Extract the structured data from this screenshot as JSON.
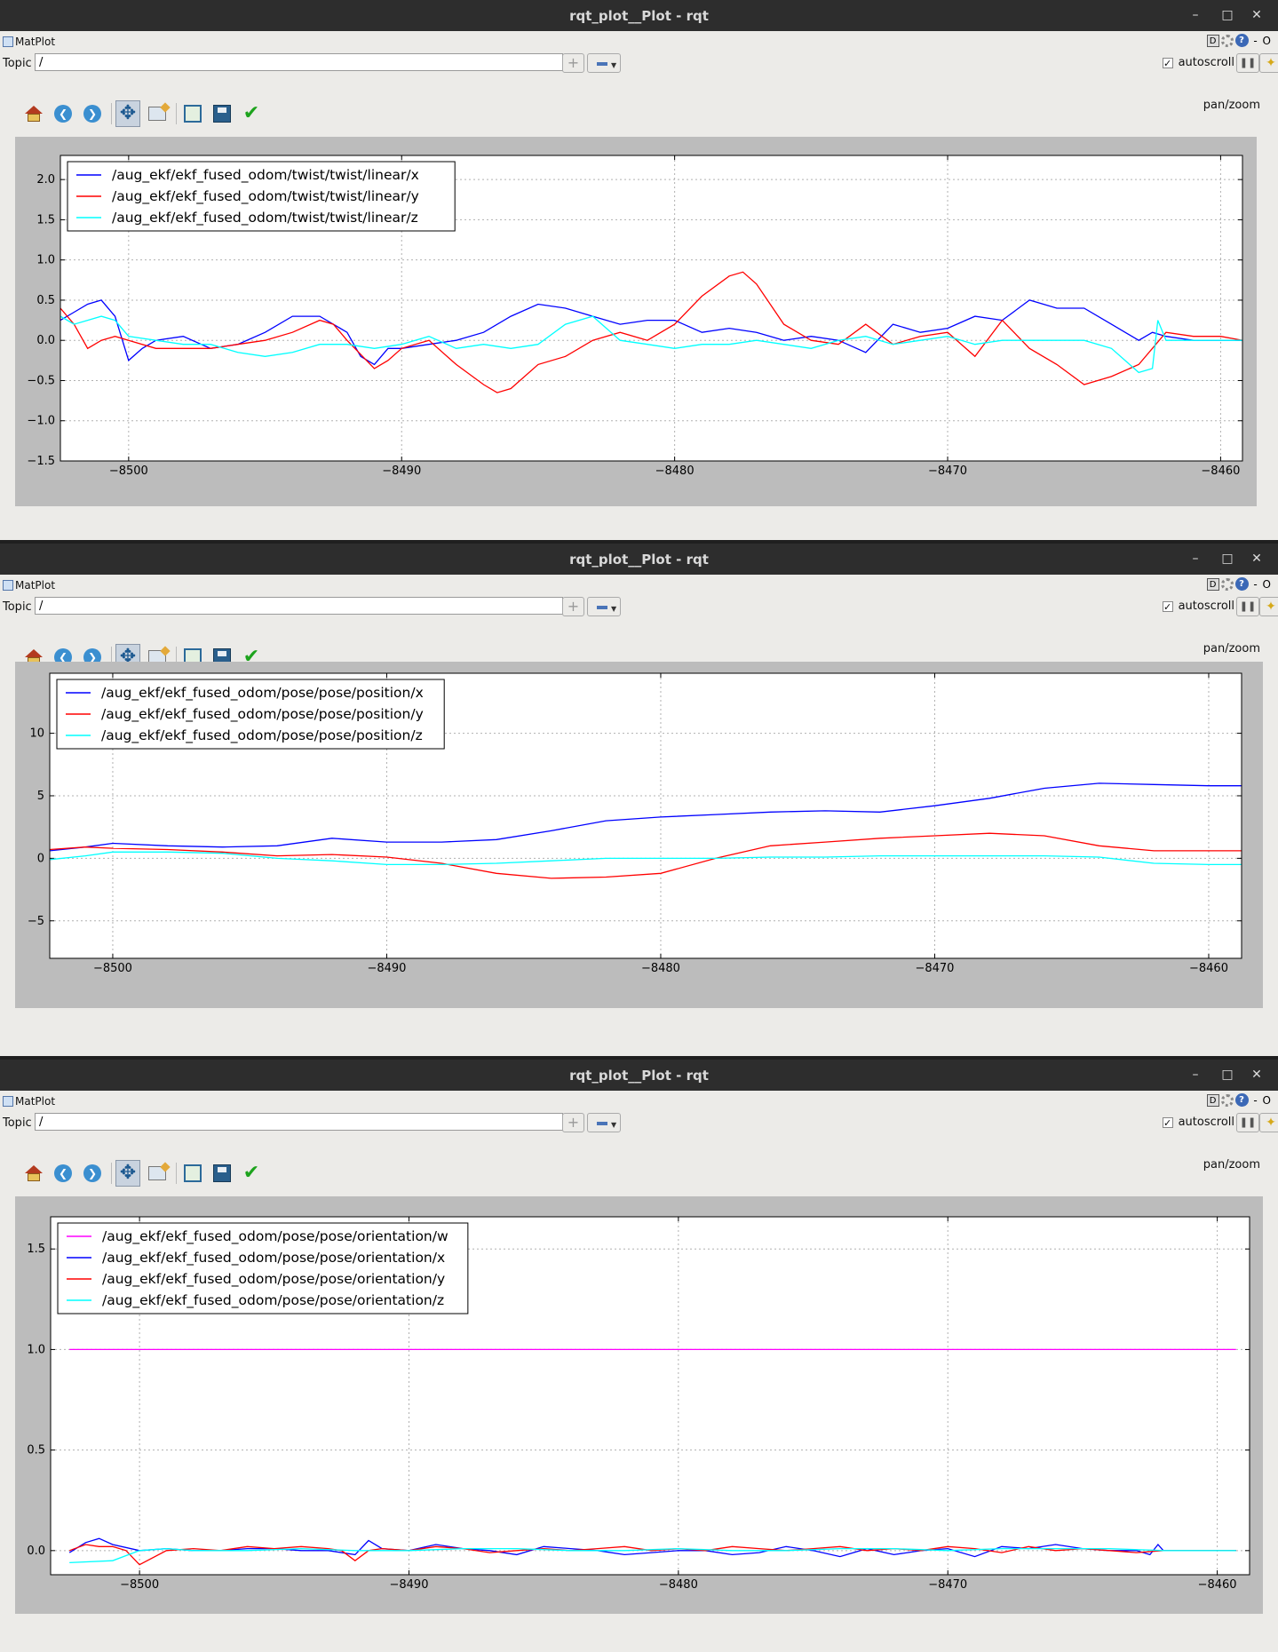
{
  "windows": [
    {
      "title": "rqt_plot__Plot - rqt",
      "plugin_label": "MatPlot",
      "topic_label": "Topic",
      "topic_value": "/",
      "autoscroll_label": "autoscroll",
      "autoscroll_checked": "✓",
      "mode_label": "pan/zoom",
      "chart_data": {
        "type": "line",
        "xlim": [
          -8502.5,
          -8459.2
        ],
        "ylim": [
          -1.5,
          2.3
        ],
        "x_ticks": [
          -8500,
          -8490,
          -8480,
          -8470,
          -8460
        ],
        "y_ticks": [
          2.0,
          1.5,
          1.0,
          0.5,
          0.0,
          -0.5,
          -1.0,
          -1.5
        ],
        "x_tick_labels": [
          "−8500",
          "−8490",
          "−8480",
          "−8470",
          "−8460"
        ],
        "y_tick_labels": [
          "2.0",
          "1.5",
          "1.0",
          "0.5",
          "0.0",
          "−0.5",
          "−1.0",
          "−1.5"
        ],
        "grid": true,
        "legend_position": "upper-left",
        "series": [
          {
            "name": "/aug_ekf/ekf_fused_odom/twist/twist/linear/x",
            "color": "#0000ff",
            "x": [
              -8502.5,
              -8502,
              -8501.5,
              -8501,
              -8500.5,
              -8500,
              -8499.5,
              -8499,
              -8498,
              -8497,
              -8496,
              -8495,
              -8494,
              -8493,
              -8492,
              -8491.5,
              -8491,
              -8490.5,
              -8490,
              -8489,
              -8488,
              -8487,
              -8486,
              -8485,
              -8484,
              -8483,
              -8482,
              -8481,
              -8480,
              -8479,
              -8478,
              -8477,
              -8476,
              -8475,
              -8474,
              -8473,
              -8472,
              -8471,
              -8470,
              -8469,
              -8468,
              -8467,
              -8466,
              -8465,
              -8464,
              -8463,
              -8462.5,
              -8462,
              -8461,
              -8460,
              -8459.2
            ],
            "y": [
              0.25,
              0.35,
              0.45,
              0.5,
              0.3,
              -0.25,
              -0.1,
              0.0,
              0.05,
              -0.1,
              -0.05,
              0.1,
              0.3,
              0.3,
              0.1,
              -0.2,
              -0.3,
              -0.1,
              -0.1,
              -0.05,
              0.0,
              0.1,
              0.3,
              0.45,
              0.4,
              0.3,
              0.2,
              0.25,
              0.25,
              0.1,
              0.15,
              0.1,
              0.0,
              0.05,
              0.0,
              -0.15,
              0.2,
              0.1,
              0.15,
              0.3,
              0.25,
              0.5,
              0.4,
              0.4,
              0.2,
              0.0,
              0.1,
              0.05,
              0.0,
              0.0,
              0.0
            ]
          },
          {
            "name": "/aug_ekf/ekf_fused_odom/twist/twist/linear/y",
            "color": "#ff0000",
            "x": [
              -8502.5,
              -8502,
              -8501.5,
              -8501,
              -8500.5,
              -8500,
              -8499,
              -8498,
              -8497,
              -8496,
              -8495,
              -8494,
              -8493,
              -8492.5,
              -8492,
              -8491,
              -8490.5,
              -8490,
              -8489,
              -8488,
              -8487,
              -8486.5,
              -8486,
              -8485,
              -8484,
              -8483,
              -8482,
              -8481,
              -8480,
              -8479,
              -8478,
              -8477.5,
              -8477,
              -8476,
              -8475,
              -8474,
              -8473,
              -8472,
              -8471,
              -8470,
              -8469,
              -8468,
              -8467,
              -8466,
              -8465,
              -8464,
              -8463,
              -8462,
              -8461,
              -8460,
              -8459.2
            ],
            "y": [
              0.4,
              0.2,
              -0.1,
              0.0,
              0.05,
              0.0,
              -0.1,
              -0.1,
              -0.1,
              -0.05,
              0.0,
              0.1,
              0.25,
              0.2,
              0.0,
              -0.35,
              -0.25,
              -0.1,
              0.0,
              -0.3,
              -0.55,
              -0.65,
              -0.6,
              -0.3,
              -0.2,
              0.0,
              0.1,
              0.0,
              0.2,
              0.55,
              0.8,
              0.85,
              0.7,
              0.2,
              0.0,
              -0.05,
              0.2,
              -0.05,
              0.05,
              0.1,
              -0.2,
              0.25,
              -0.1,
              -0.3,
              -0.55,
              -0.45,
              -0.3,
              0.1,
              0.05,
              0.05,
              0.0
            ]
          },
          {
            "name": "/aug_ekf/ekf_fused_odom/twist/twist/linear/z",
            "color": "#00ffff",
            "x": [
              -8502.5,
              -8502,
              -8501.5,
              -8501,
              -8500.5,
              -8500,
              -8499,
              -8498,
              -8497,
              -8496,
              -8495,
              -8494,
              -8493,
              -8492,
              -8491,
              -8490,
              -8489,
              -8488,
              -8487,
              -8486,
              -8485,
              -8484,
              -8483,
              -8482,
              -8481,
              -8480,
              -8479,
              -8478,
              -8477,
              -8476,
              -8475,
              -8474,
              -8473,
              -8472,
              -8471,
              -8470,
              -8469,
              -8468,
              -8467,
              -8466,
              -8465,
              -8464,
              -8463,
              -8462.5,
              -8462.3,
              -8462,
              -8461,
              -8460,
              -8459.2
            ],
            "y": [
              0.3,
              0.2,
              0.25,
              0.3,
              0.25,
              0.05,
              0.0,
              -0.05,
              -0.05,
              -0.15,
              -0.2,
              -0.15,
              -0.05,
              -0.05,
              -0.1,
              -0.05,
              0.05,
              -0.1,
              -0.05,
              -0.1,
              -0.05,
              0.2,
              0.3,
              0.0,
              -0.05,
              -0.1,
              -0.05,
              -0.05,
              0.0,
              -0.05,
              -0.1,
              0.0,
              0.05,
              -0.05,
              0.0,
              0.05,
              -0.05,
              0.0,
              0.0,
              0.0,
              0.0,
              -0.1,
              -0.4,
              -0.35,
              0.25,
              0.0,
              0.0,
              0.0,
              0.0
            ]
          }
        ]
      }
    },
    {
      "title": "rqt_plot__Plot - rqt",
      "plugin_label": "MatPlot",
      "topic_label": "Topic",
      "topic_value": "/",
      "autoscroll_label": "autoscroll",
      "autoscroll_checked": "✓",
      "mode_label": "pan/zoom",
      "chart_data": {
        "type": "line",
        "xlim": [
          -8502.3,
          -8458.8
        ],
        "ylim": [
          -8,
          14.8
        ],
        "x_ticks": [
          -8500,
          -8490,
          -8480,
          -8470,
          -8460
        ],
        "y_ticks": [
          10,
          5,
          0,
          -5
        ],
        "x_tick_labels": [
          "−8500",
          "−8490",
          "−8480",
          "−8470",
          "−8460"
        ],
        "y_tick_labels": [
          "10",
          "5",
          "0",
          "−5"
        ],
        "grid": true,
        "legend_position": "upper-left",
        "series": [
          {
            "name": "/aug_ekf/ekf_fused_odom/pose/pose/position/x",
            "color": "#0000ff",
            "x": [
              -8502.3,
              -8501,
              -8500,
              -8498,
              -8496,
              -8494,
              -8492,
              -8490,
              -8488,
              -8486,
              -8484,
              -8482,
              -8480,
              -8478,
              -8476,
              -8474,
              -8472,
              -8470,
              -8468,
              -8466,
              -8464,
              -8462,
              -8460,
              -8458.8
            ],
            "y": [
              0.6,
              0.9,
              1.2,
              1.0,
              0.9,
              1.0,
              1.6,
              1.3,
              1.3,
              1.5,
              2.2,
              3.0,
              3.3,
              3.5,
              3.7,
              3.8,
              3.7,
              4.2,
              4.8,
              5.6,
              6.0,
              5.9,
              5.8,
              5.8
            ]
          },
          {
            "name": "/aug_ekf/ekf_fused_odom/pose/pose/position/y",
            "color": "#ff0000",
            "x": [
              -8502.3,
              -8501,
              -8500,
              -8498,
              -8496,
              -8494,
              -8492,
              -8490,
              -8488,
              -8486,
              -8484,
              -8482,
              -8480,
              -8478,
              -8476,
              -8474,
              -8472,
              -8470,
              -8468,
              -8466,
              -8464,
              -8462,
              -8460,
              -8458.8
            ],
            "y": [
              0.7,
              0.9,
              0.8,
              0.7,
              0.5,
              0.2,
              0.3,
              0.1,
              -0.4,
              -1.2,
              -1.6,
              -1.5,
              -1.2,
              0.0,
              1.0,
              1.3,
              1.6,
              1.8,
              2.0,
              1.8,
              1.0,
              0.6,
              0.6,
              0.6
            ]
          },
          {
            "name": "/aug_ekf/ekf_fused_odom/pose/pose/position/z",
            "color": "#00ffff",
            "x": [
              -8502.3,
              -8501,
              -8500,
              -8498,
              -8496,
              -8494,
              -8492,
              -8490,
              -8488,
              -8486,
              -8484,
              -8482,
              -8480,
              -8478,
              -8476,
              -8474,
              -8472,
              -8470,
              -8468,
              -8466,
              -8464,
              -8462,
              -8460,
              -8458.8
            ],
            "y": [
              -0.1,
              0.2,
              0.5,
              0.5,
              0.4,
              0.0,
              -0.2,
              -0.5,
              -0.5,
              -0.4,
              -0.2,
              0.0,
              0.0,
              0.0,
              0.1,
              0.1,
              0.2,
              0.2,
              0.2,
              0.2,
              0.1,
              -0.4,
              -0.5,
              -0.5
            ]
          }
        ]
      }
    },
    {
      "title": "rqt_plot__Plot - rqt",
      "plugin_label": "MatPlot",
      "topic_label": "Topic",
      "topic_value": "/",
      "autoscroll_label": "autoscroll",
      "autoscroll_checked": "✓",
      "mode_label": "pan/zoom",
      "chart_data": {
        "type": "line",
        "xlim": [
          -8503.3,
          -8458.8
        ],
        "ylim": [
          -0.12,
          1.66
        ],
        "x_ticks": [
          -8500,
          -8490,
          -8480,
          -8470,
          -8460
        ],
        "y_ticks": [
          1.5,
          1.0,
          0.5,
          0.0
        ],
        "x_tick_labels": [
          "−8500",
          "−8490",
          "−8480",
          "−8470",
          "−8460"
        ],
        "y_tick_labels": [
          "1.5",
          "1.0",
          "0.5",
          "0.0"
        ],
        "grid": true,
        "legend_position": "upper-left",
        "series": [
          {
            "name": "/aug_ekf/ekf_fused_odom/pose/pose/orientation/w",
            "color": "#ff00ff",
            "x": [
              -8502.6,
              -8500,
              -8495,
              -8490,
              -8485,
              -8480,
              -8475,
              -8470,
              -8465,
              -8460,
              -8459.3
            ],
            "y": [
              1.0,
              1.0,
              1.0,
              1.0,
              1.0,
              1.0,
              1.0,
              1.0,
              1.0,
              1.0,
              1.0
            ]
          },
          {
            "name": "/aug_ekf/ekf_fused_odom/pose/pose/orientation/x",
            "color": "#0000ff",
            "x": [
              -8502.6,
              -8502,
              -8501.5,
              -8501,
              -8500,
              -8499,
              -8498,
              -8497,
              -8496,
              -8495,
              -8494,
              -8493,
              -8492,
              -8491.5,
              -8491,
              -8490,
              -8489,
              -8488,
              -8487,
              -8486,
              -8485,
              -8484,
              -8483,
              -8482,
              -8481,
              -8480,
              -8479,
              -8478,
              -8477,
              -8476,
              -8475,
              -8474,
              -8473,
              -8472,
              -8471,
              -8470,
              -8469,
              -8468,
              -8467,
              -8466,
              -8465,
              -8464,
              -8463,
              -8462.5,
              -8462.2,
              -8462,
              -8461,
              -8460,
              -8459.3
            ],
            "y": [
              -0.01,
              0.04,
              0.06,
              0.03,
              0.0,
              0.01,
              0.0,
              0.0,
              0.01,
              0.01,
              0.0,
              0.0,
              -0.02,
              0.05,
              0.01,
              0.0,
              0.03,
              0.01,
              0.0,
              -0.02,
              0.02,
              0.01,
              0.0,
              -0.02,
              -0.01,
              0.0,
              0.0,
              -0.02,
              -0.01,
              0.02,
              0.0,
              -0.03,
              0.01,
              -0.02,
              0.0,
              0.01,
              -0.03,
              0.02,
              0.01,
              0.03,
              0.01,
              0.0,
              0.0,
              -0.02,
              0.03,
              0.0,
              0.0,
              0.0,
              0.0
            ]
          },
          {
            "name": "/aug_ekf/ekf_fused_odom/pose/pose/orientation/y",
            "color": "#ff0000",
            "x": [
              -8502.6,
              -8502,
              -8501.5,
              -8501,
              -8500.5,
              -8500,
              -8499,
              -8498,
              -8497,
              -8496,
              -8495,
              -8494,
              -8493,
              -8492.5,
              -8492,
              -8491.5,
              -8491,
              -8490,
              -8489,
              -8488,
              -8487,
              -8486,
              -8485,
              -8484,
              -8483,
              -8482,
              -8481,
              -8480,
              -8479,
              -8478,
              -8477,
              -8476,
              -8475,
              -8474,
              -8473,
              -8472,
              -8471,
              -8470,
              -8469,
              -8468,
              -8467,
              -8466,
              -8465,
              -8464,
              -8463,
              -8462,
              -8461,
              -8460,
              -8459.3
            ],
            "y": [
              0.0,
              0.03,
              0.02,
              0.02,
              0.0,
              -0.07,
              0.0,
              0.01,
              0.0,
              0.02,
              0.01,
              0.02,
              0.01,
              0.0,
              -0.05,
              0.0,
              0.01,
              0.0,
              0.02,
              0.01,
              -0.01,
              0.0,
              0.01,
              0.0,
              0.01,
              0.02,
              0.0,
              0.01,
              0.0,
              0.02,
              0.01,
              0.0,
              0.01,
              0.02,
              0.0,
              0.01,
              0.0,
              0.02,
              0.01,
              -0.01,
              0.02,
              0.0,
              0.01,
              0.0,
              -0.01,
              0.0,
              0.0,
              0.0,
              0.0
            ]
          },
          {
            "name": "/aug_ekf/ekf_fused_odom/pose/pose/orientation/z",
            "color": "#00ffff",
            "x": [
              -8502.6,
              -8501,
              -8500,
              -8499,
              -8498,
              -8496,
              -8494,
              -8492,
              -8490,
              -8488,
              -8486,
              -8484,
              -8482,
              -8480,
              -8478,
              -8476,
              -8474,
              -8472,
              -8470,
              -8468,
              -8466,
              -8464,
              -8462,
              -8460,
              -8459.3
            ],
            "y": [
              -0.06,
              -0.05,
              0.0,
              0.01,
              0.0,
              0.0,
              0.01,
              0.0,
              0.0,
              0.01,
              0.01,
              0.0,
              0.0,
              0.01,
              0.0,
              0.0,
              0.01,
              0.01,
              0.0,
              0.01,
              0.01,
              0.01,
              0.0,
              0.0,
              0.0
            ]
          }
        ]
      }
    }
  ]
}
